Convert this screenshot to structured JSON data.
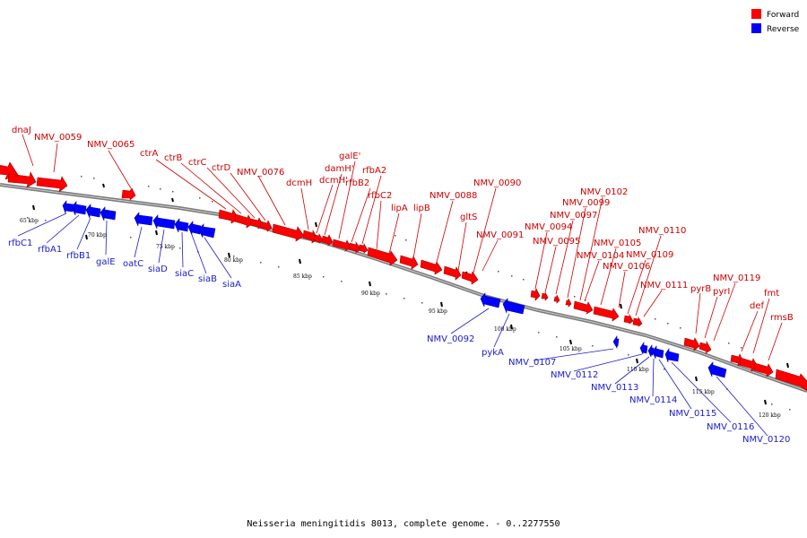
{
  "caption": "Neisseria meningitidis 8013, complete genome. - 0..2277550",
  "legend": [
    {
      "label": "Forward",
      "color": "#ff0000"
    },
    {
      "label": "Reverse",
      "color": "#0000ff"
    }
  ],
  "colors": {
    "forward": "#ff0000",
    "reverse": "#0000ff",
    "forward_label": "#cc0000",
    "reverse_label": "#1a1acc"
  },
  "scale_labels": [
    "65 kbp",
    "70 kbp",
    "75 kbp",
    "80 kbp",
    "85 kbp",
    "90 kbp",
    "95 kbp",
    "100 kbp",
    "105 kbp",
    "110 kbp",
    "115 kbp",
    "120 kbp"
  ],
  "forward_genes": [
    "dnaJ",
    "NMV_0059",
    "NMV_0065",
    "ctrA",
    "ctrB",
    "ctrC",
    "ctrD",
    "NMV_0076",
    "dcmH",
    "dcmH'",
    "damH'",
    "galE'",
    "rfbB2",
    "rfbA2",
    "rfbC2",
    "lipA",
    "lipB",
    "NMV_0088",
    "gltS",
    "NMV_0090",
    "NMV_0091",
    "NMV_0094",
    "NMV_0095",
    "NMV_0097",
    "NMV_0099",
    "NMV_0102",
    "NMV_0104",
    "NMV_0105",
    "NMV_0106",
    "NMV_0109",
    "NMV_0110",
    "NMV_0111",
    "pyrB",
    "pyrI",
    "NMV_0119",
    "def",
    "fmt",
    "rmsB"
  ],
  "reverse_genes": [
    "rfbC1",
    "rfbA1",
    "rfbB1",
    "galE",
    "oatC",
    "siaD",
    "siaC",
    "siaB",
    "siaA",
    "NMV_0092",
    "pykA",
    "NMV_0107",
    "NMV_0112",
    "NMV_0113",
    "NMV_0114",
    "NMV_0115",
    "NMV_0116",
    "NMV_0120"
  ]
}
